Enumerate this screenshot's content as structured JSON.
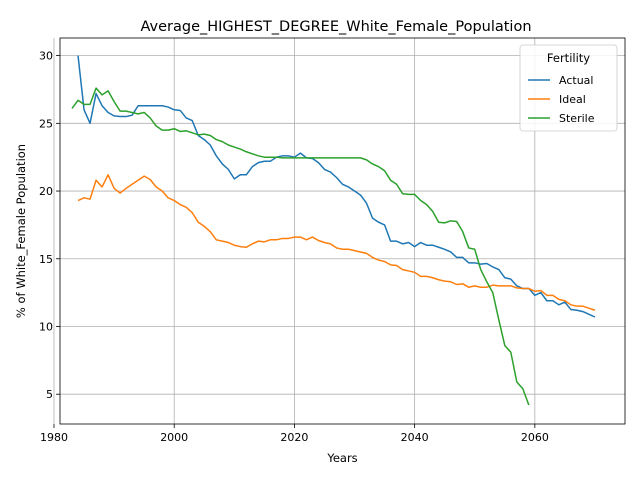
{
  "chart_data": {
    "type": "line",
    "title": "Average_HIGHEST_DEGREE_White_Female_Population",
    "xlabel": "Years",
    "ylabel": "% of White_Female Population",
    "xlim": [
      1981,
      2075
    ],
    "ylim": [
      2.8,
      31.3
    ],
    "xticks": [
      1980,
      2000,
      2020,
      2040,
      2060
    ],
    "yticks": [
      5,
      10,
      15,
      20,
      25,
      30
    ],
    "grid": true,
    "legend": {
      "title": "Fertility",
      "placement": "top-right"
    },
    "series": [
      {
        "name": "Actual",
        "color": "#1f77b4",
        "points": [
          [
            1984,
            30.0
          ],
          [
            1985,
            26.0
          ],
          [
            1986,
            25.0
          ],
          [
            1987,
            27.2
          ],
          [
            1988,
            26.3
          ],
          [
            1989,
            25.8
          ],
          [
            1990,
            25.55
          ],
          [
            1991,
            25.5
          ],
          [
            1992,
            25.5
          ],
          [
            1993,
            25.6
          ],
          [
            1994,
            26.3
          ],
          [
            1995,
            26.3
          ],
          [
            1996,
            26.3
          ],
          [
            1997,
            26.3
          ],
          [
            1998,
            26.3
          ],
          [
            1999,
            26.2
          ],
          [
            2000,
            26.0
          ],
          [
            2001,
            25.95
          ],
          [
            2002,
            25.4
          ],
          [
            2003,
            25.2
          ],
          [
            2004,
            24.1
          ],
          [
            2005,
            23.8
          ],
          [
            2006,
            23.4
          ],
          [
            2007,
            22.6
          ],
          [
            2008,
            22.0
          ],
          [
            2009,
            21.6
          ],
          [
            2010,
            20.9
          ],
          [
            2011,
            21.2
          ],
          [
            2012,
            21.2
          ],
          [
            2013,
            21.8
          ],
          [
            2014,
            22.1
          ],
          [
            2015,
            22.2
          ],
          [
            2016,
            22.2
          ],
          [
            2017,
            22.5
          ],
          [
            2018,
            22.6
          ],
          [
            2019,
            22.6
          ],
          [
            2020,
            22.5
          ],
          [
            2021,
            22.8
          ],
          [
            2022,
            22.45
          ],
          [
            2023,
            22.4
          ],
          [
            2024,
            22.1
          ],
          [
            2025,
            21.6
          ],
          [
            2026,
            21.4
          ],
          [
            2027,
            21.0
          ],
          [
            2028,
            20.5
          ],
          [
            2029,
            20.3
          ],
          [
            2030,
            20.0
          ],
          [
            2031,
            19.7
          ],
          [
            2032,
            19.1
          ],
          [
            2033,
            18.0
          ],
          [
            2034,
            17.7
          ],
          [
            2035,
            17.5
          ],
          [
            2036,
            16.3
          ],
          [
            2037,
            16.3
          ],
          [
            2038,
            16.1
          ],
          [
            2039,
            16.2
          ],
          [
            2040,
            15.9
          ],
          [
            2041,
            16.2
          ],
          [
            2042,
            16.0
          ],
          [
            2043,
            16.0
          ],
          [
            2044,
            15.85
          ],
          [
            2045,
            15.7
          ],
          [
            2046,
            15.5
          ],
          [
            2047,
            15.1
          ],
          [
            2048,
            15.1
          ],
          [
            2049,
            14.7
          ],
          [
            2050,
            14.7
          ],
          [
            2051,
            14.6
          ],
          [
            2052,
            14.65
          ],
          [
            2053,
            14.4
          ],
          [
            2054,
            14.2
          ],
          [
            2055,
            13.6
          ],
          [
            2056,
            13.5
          ],
          [
            2057,
            13.0
          ],
          [
            2058,
            12.8
          ],
          [
            2059,
            12.8
          ],
          [
            2060,
            12.3
          ],
          [
            2061,
            12.5
          ],
          [
            2062,
            11.9
          ],
          [
            2063,
            11.9
          ],
          [
            2064,
            11.6
          ],
          [
            2065,
            11.8
          ],
          [
            2066,
            11.25
          ],
          [
            2067,
            11.2
          ],
          [
            2068,
            11.1
          ],
          [
            2069,
            10.9
          ],
          [
            2070,
            10.7
          ]
        ]
      },
      {
        "name": "Ideal",
        "color": "#ff7f0e",
        "points": [
          [
            1984,
            19.3
          ],
          [
            1985,
            19.5
          ],
          [
            1986,
            19.4
          ],
          [
            1987,
            20.8
          ],
          [
            1988,
            20.3
          ],
          [
            1989,
            21.2
          ],
          [
            1990,
            20.2
          ],
          [
            1991,
            19.85
          ],
          [
            1992,
            20.2
          ],
          [
            1993,
            20.5
          ],
          [
            1994,
            20.8
          ],
          [
            1995,
            21.1
          ],
          [
            1996,
            20.85
          ],
          [
            1997,
            20.3
          ],
          [
            1998,
            20.0
          ],
          [
            1999,
            19.5
          ],
          [
            2000,
            19.3
          ],
          [
            2001,
            19.0
          ],
          [
            2002,
            18.8
          ],
          [
            2003,
            18.4
          ],
          [
            2004,
            17.7
          ],
          [
            2005,
            17.4
          ],
          [
            2006,
            17.0
          ],
          [
            2007,
            16.4
          ],
          [
            2008,
            16.3
          ],
          [
            2009,
            16.2
          ],
          [
            2010,
            16.0
          ],
          [
            2011,
            15.9
          ],
          [
            2012,
            15.85
          ],
          [
            2013,
            16.1
          ],
          [
            2014,
            16.3
          ],
          [
            2015,
            16.25
          ],
          [
            2016,
            16.4
          ],
          [
            2017,
            16.4
          ],
          [
            2018,
            16.5
          ],
          [
            2019,
            16.5
          ],
          [
            2020,
            16.6
          ],
          [
            2021,
            16.6
          ],
          [
            2022,
            16.4
          ],
          [
            2023,
            16.6
          ],
          [
            2024,
            16.35
          ],
          [
            2025,
            16.2
          ],
          [
            2026,
            16.1
          ],
          [
            2027,
            15.8
          ],
          [
            2028,
            15.7
          ],
          [
            2029,
            15.7
          ],
          [
            2030,
            15.6
          ],
          [
            2031,
            15.5
          ],
          [
            2032,
            15.4
          ],
          [
            2033,
            15.1
          ],
          [
            2034,
            14.9
          ],
          [
            2035,
            14.8
          ],
          [
            2036,
            14.55
          ],
          [
            2037,
            14.5
          ],
          [
            2038,
            14.2
          ],
          [
            2039,
            14.1
          ],
          [
            2040,
            14.0
          ],
          [
            2041,
            13.7
          ],
          [
            2042,
            13.7
          ],
          [
            2043,
            13.6
          ],
          [
            2044,
            13.45
          ],
          [
            2045,
            13.35
          ],
          [
            2046,
            13.3
          ],
          [
            2047,
            13.1
          ],
          [
            2048,
            13.15
          ],
          [
            2049,
            12.9
          ],
          [
            2050,
            13.0
          ],
          [
            2051,
            12.9
          ],
          [
            2052,
            12.9
          ],
          [
            2053,
            13.05
          ],
          [
            2054,
            13.0
          ],
          [
            2055,
            13.0
          ],
          [
            2056,
            13.0
          ],
          [
            2057,
            12.85
          ],
          [
            2058,
            12.8
          ],
          [
            2059,
            12.8
          ],
          [
            2060,
            12.6
          ],
          [
            2061,
            12.65
          ],
          [
            2062,
            12.3
          ],
          [
            2063,
            12.3
          ],
          [
            2064,
            12.0
          ],
          [
            2065,
            11.9
          ],
          [
            2066,
            11.6
          ],
          [
            2067,
            11.5
          ],
          [
            2068,
            11.5
          ],
          [
            2069,
            11.35
          ],
          [
            2070,
            11.2
          ]
        ]
      },
      {
        "name": "Sterile",
        "color": "#2ca02c",
        "points": [
          [
            1983,
            26.1
          ],
          [
            1984,
            26.7
          ],
          [
            1985,
            26.4
          ],
          [
            1986,
            26.4
          ],
          [
            1987,
            27.6
          ],
          [
            1988,
            27.1
          ],
          [
            1989,
            27.4
          ],
          [
            1990,
            26.6
          ],
          [
            1991,
            25.9
          ],
          [
            1992,
            25.9
          ],
          [
            1993,
            25.8
          ],
          [
            1994,
            25.7
          ],
          [
            1995,
            25.8
          ],
          [
            1996,
            25.4
          ],
          [
            1997,
            24.8
          ],
          [
            1998,
            24.5
          ],
          [
            1999,
            24.5
          ],
          [
            2000,
            24.6
          ],
          [
            2001,
            24.4
          ],
          [
            2002,
            24.45
          ],
          [
            2003,
            24.3
          ],
          [
            2004,
            24.15
          ],
          [
            2005,
            24.2
          ],
          [
            2006,
            24.1
          ],
          [
            2007,
            23.8
          ],
          [
            2008,
            23.65
          ],
          [
            2009,
            23.4
          ],
          [
            2010,
            23.25
          ],
          [
            2011,
            23.1
          ],
          [
            2012,
            22.9
          ],
          [
            2013,
            22.75
          ],
          [
            2014,
            22.6
          ],
          [
            2015,
            22.5
          ],
          [
            2016,
            22.5
          ],
          [
            2017,
            22.5
          ],
          [
            2018,
            22.45
          ],
          [
            2019,
            22.45
          ],
          [
            2020,
            22.45
          ],
          [
            2021,
            22.45
          ],
          [
            2022,
            22.45
          ],
          [
            2023,
            22.45
          ],
          [
            2024,
            22.45
          ],
          [
            2025,
            22.45
          ],
          [
            2026,
            22.45
          ],
          [
            2027,
            22.45
          ],
          [
            2028,
            22.45
          ],
          [
            2029,
            22.45
          ],
          [
            2030,
            22.45
          ],
          [
            2031,
            22.45
          ],
          [
            2032,
            22.3
          ],
          [
            2033,
            22.0
          ],
          [
            2034,
            21.8
          ],
          [
            2035,
            21.5
          ],
          [
            2036,
            20.8
          ],
          [
            2037,
            20.5
          ],
          [
            2038,
            19.8
          ],
          [
            2039,
            19.75
          ],
          [
            2040,
            19.75
          ],
          [
            2041,
            19.3
          ],
          [
            2042,
            19.0
          ],
          [
            2043,
            18.5
          ],
          [
            2044,
            17.7
          ],
          [
            2045,
            17.65
          ],
          [
            2046,
            17.8
          ],
          [
            2047,
            17.75
          ],
          [
            2048,
            17.0
          ],
          [
            2049,
            15.8
          ],
          [
            2050,
            15.7
          ],
          [
            2051,
            14.2
          ],
          [
            2052,
            13.3
          ],
          [
            2053,
            12.5
          ],
          [
            2054,
            10.5
          ],
          [
            2055,
            8.6
          ],
          [
            2056,
            8.1
          ],
          [
            2057,
            5.9
          ],
          [
            2058,
            5.4
          ],
          [
            2059,
            4.2
          ]
        ]
      }
    ]
  }
}
